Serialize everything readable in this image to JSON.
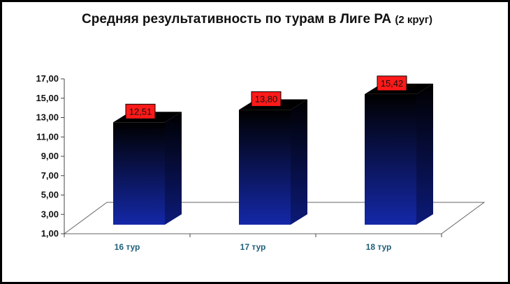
{
  "chart_data": {
    "type": "bar",
    "title": "Средняя результативность по турам в Лиге РА",
    "subtitle": "(2 круг)",
    "categories": [
      "16 тур",
      "17 тур",
      "18 тур"
    ],
    "values": [
      12.51,
      13.8,
      15.42
    ],
    "value_labels": [
      "12,51",
      "13,80",
      "15,42"
    ],
    "yticks": [
      "1,00",
      "3,00",
      "5,00",
      "7,00",
      "9,00",
      "11,00",
      "13,00",
      "15,00",
      "17,00"
    ],
    "ylim": [
      1,
      17
    ],
    "style": "3d-bar",
    "bar_gradient": [
      "#000000",
      "#1428a8"
    ],
    "label_box_color": "#ff1a1a"
  }
}
